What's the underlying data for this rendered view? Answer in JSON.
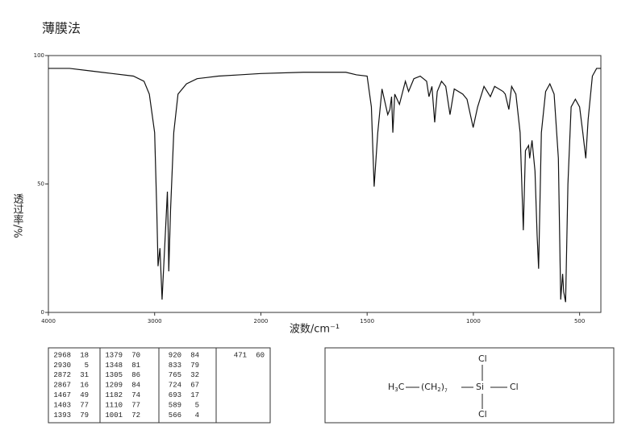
{
  "chart_data": {
    "type": "line",
    "title": "薄膜法",
    "x_label": "波数/cm⁻¹",
    "y_label": "透过率/%",
    "xlim": [
      4000,
      400
    ],
    "xbreak": 2000,
    "xticks": [
      4000,
      3000,
      2000,
      1500,
      1000,
      500
    ],
    "ylim": [
      0,
      100
    ],
    "yticks": [
      0,
      50,
      100
    ],
    "series": [
      {
        "color": "#111111",
        "x": [
          4000,
          3800,
          3600,
          3400,
          3200,
          3100,
          3050,
          3000,
          2980,
          2968,
          2950,
          2930,
          2900,
          2880,
          2872,
          2867,
          2850,
          2820,
          2780,
          2700,
          2600,
          2400,
          2200,
          2000,
          1800,
          1600,
          1550,
          1500,
          1480,
          1467,
          1450,
          1430,
          1403,
          1393,
          1385,
          1379,
          1370,
          1348,
          1320,
          1305,
          1280,
          1250,
          1220,
          1209,
          1195,
          1182,
          1170,
          1150,
          1130,
          1110,
          1090,
          1050,
          1030,
          1001,
          980,
          950,
          920,
          900,
          860,
          850,
          833,
          820,
          800,
          780,
          765,
          755,
          740,
          735,
          724,
          710,
          700,
          693,
          680,
          660,
          640,
          620,
          600,
          589,
          580,
          575,
          566,
          555,
          540,
          520,
          500,
          485,
          471,
          460,
          440,
          420,
          400
        ],
        "values": [
          95,
          95,
          94,
          93,
          92,
          90,
          85,
          70,
          40,
          18,
          25,
          5,
          30,
          47,
          31,
          16,
          40,
          70,
          85,
          89,
          91,
          92,
          92.5,
          93,
          93.5,
          93.5,
          92.5,
          92,
          80,
          49,
          70,
          87,
          77,
          79,
          84,
          70,
          85,
          81,
          90,
          86,
          91,
          92,
          90,
          84,
          88,
          74,
          86,
          90,
          88,
          77,
          87,
          85,
          83,
          72,
          80,
          88,
          84,
          88,
          86,
          85,
          79,
          88,
          85,
          70,
          32,
          63,
          65,
          60,
          67,
          55,
          30,
          17,
          70,
          86,
          89,
          85,
          60,
          5,
          15,
          8,
          4,
          50,
          80,
          83,
          80,
          70,
          60,
          75,
          92,
          95,
          95
        ]
      }
    ]
  },
  "peak_table": {
    "columns": [
      [
        [
          "2968",
          "18"
        ],
        [
          "2930",
          "5"
        ],
        [
          "2872",
          "31"
        ],
        [
          "2867",
          "16"
        ],
        [
          "1467",
          "49"
        ],
        [
          "1403",
          "77"
        ],
        [
          "1393",
          "79"
        ]
      ],
      [
        [
          "1379",
          "70"
        ],
        [
          "1348",
          "81"
        ],
        [
          "1305",
          "86"
        ],
        [
          "1209",
          "84"
        ],
        [
          "1182",
          "74"
        ],
        [
          "1110",
          "77"
        ],
        [
          "1001",
          "72"
        ]
      ],
      [
        [
          "920",
          "84"
        ],
        [
          "833",
          "79"
        ],
        [
          "765",
          "32"
        ],
        [
          "724",
          "67"
        ],
        [
          "693",
          "17"
        ],
        [
          "589",
          "5"
        ],
        [
          "566",
          "4"
        ]
      ],
      [
        [
          "471",
          "60"
        ]
      ]
    ]
  },
  "structure": {
    "left_group": [
      "H",
      "3",
      "C"
    ],
    "chain": [
      "(CH",
      "2",
      ")",
      "7"
    ],
    "atom": "Si",
    "substituents": [
      "Cl",
      "Cl",
      "Cl"
    ]
  }
}
